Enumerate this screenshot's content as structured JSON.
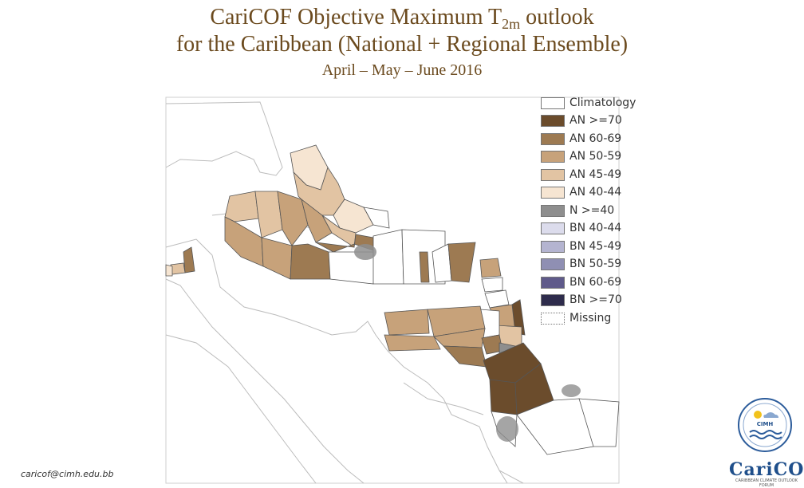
{
  "title": {
    "line1_main": "CariCOF Objective Maximum T",
    "line1_sub": "2m",
    "line1_end": " outlook",
    "line2": "for the Caribbean (National + Regional Ensemble)",
    "line3": "April – May – June 2016"
  },
  "legend": [
    {
      "label": "Climatology",
      "color": "#ffffff"
    },
    {
      "label": "AN >=70",
      "color": "#6b4c2c"
    },
    {
      "label": "AN 60-69",
      "color": "#9d7a52"
    },
    {
      "label": "AN 50-59",
      "color": "#c7a27a"
    },
    {
      "label": "AN 45-49",
      "color": "#e2c4a3"
    },
    {
      "label": "AN 40-44",
      "color": "#f6e5d2"
    },
    {
      "label": "N >=40",
      "color": "#8e8e8e"
    },
    {
      "label": "BN 40-44",
      "color": "#dcdcec"
    },
    {
      "label": "BN 45-49",
      "color": "#b4b4d0"
    },
    {
      "label": "BN 50-59",
      "color": "#8f8fb3"
    },
    {
      "label": "BN 60-69",
      "color": "#5f5a8a"
    },
    {
      "label": "BN  >=70",
      "color": "#2e2c4c"
    },
    {
      "label": "Missing",
      "color": "#ffffff"
    }
  ],
  "footer": {
    "email": "caricof@cimh.edu.bb",
    "logo_cimh": "CIMH",
    "logo_name": "CariCOF",
    "logo_sub": "CARIBBEAN CLIMATE OUTLOOK FORUM"
  }
}
